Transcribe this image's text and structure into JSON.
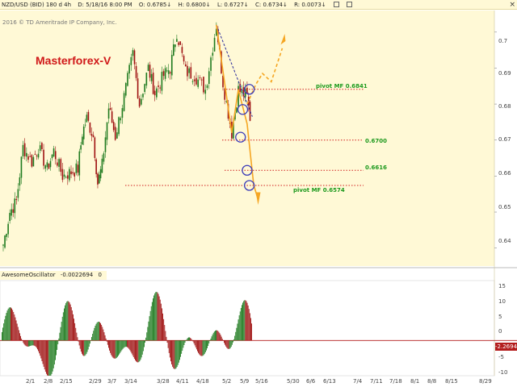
{
  "header": {
    "symbol": "NZD/USD (BID) 180 d 4h",
    "date": "D: 5/18/16 8:00 PM",
    "open": "O: 0.6785↓",
    "high": "H: 0.6800↓",
    "low": "L: 0.6727↓",
    "close": "C: 0.6734↓",
    "range": "R: 0.0073↓",
    "close_icon": "×"
  },
  "copyright": "2016 © TD Ameritrade IP Company, Inc.",
  "watermark": "Masterforex-V",
  "annotations": {
    "pivot_high": "pivot MF 0.6841",
    "level_mid": "0.6700",
    "level_low": "0.6616",
    "pivot_low": "pivot MF 0.6574"
  },
  "price_axis": [
    "0.7",
    "0.69",
    "0.68",
    "0.67",
    "0.66",
    "0.65",
    "0.64"
  ],
  "oscillator": {
    "name": "AwesomeOscillator",
    "value": "-0.0022694",
    "extra": "0",
    "axis": [
      "15",
      "10",
      "5",
      "0",
      "-5",
      "-10"
    ],
    "badge": "-2.2694"
  },
  "date_axis": [
    "2/1",
    "2/8",
    "2/15",
    "2/29",
    "3/7",
    "3/14",
    "3/28",
    "4/11",
    "4/18",
    "5/2",
    "5/9",
    "5/16",
    "5/30",
    "6/6",
    "6/13",
    "7/4",
    "7/11",
    "7/18",
    "8/1",
    "8/8",
    "8/15",
    "8/29"
  ],
  "colors": {
    "chart_bg": "#fff9d6",
    "bull": "#1e7a1e",
    "bear": "#9e1010",
    "forecast": "#f5a623",
    "level_line": "#d02020",
    "trend_line": "#2a2a9a",
    "circle": "#3a3ab8"
  },
  "chart_data": [
    {
      "type": "candlestick",
      "title": "NZD/USD (BID) 180 d 4h",
      "ylim": [
        0.635,
        0.706
      ],
      "x_tick_labels": [
        "2/1",
        "2/8",
        "2/15",
        "2/29",
        "3/7",
        "3/14",
        "3/28",
        "4/11",
        "4/18",
        "5/2",
        "5/9",
        "5/16"
      ],
      "close_path": [
        {
          "x": "1/26",
          "y": 0.641
        },
        {
          "x": "1/29",
          "y": 0.65
        },
        {
          "x": "2/1",
          "y": 0.653
        },
        {
          "x": "2/4",
          "y": 0.668
        },
        {
          "x": "2/8",
          "y": 0.664
        },
        {
          "x": "2/11",
          "y": 0.668
        },
        {
          "x": "2/15",
          "y": 0.662
        },
        {
          "x": "2/18",
          "y": 0.667
        },
        {
          "x": "2/22",
          "y": 0.66
        },
        {
          "x": "2/29",
          "y": 0.662
        },
        {
          "x": "3/2",
          "y": 0.672
        },
        {
          "x": "3/4",
          "y": 0.676
        },
        {
          "x": "3/7",
          "y": 0.671
        },
        {
          "x": "3/9",
          "y": 0.658
        },
        {
          "x": "3/11",
          "y": 0.663
        },
        {
          "x": "3/14",
          "y": 0.679
        },
        {
          "x": "3/17",
          "y": 0.671
        },
        {
          "x": "3/21",
          "y": 0.682
        },
        {
          "x": "3/25",
          "y": 0.694
        },
        {
          "x": "3/28",
          "y": 0.68
        },
        {
          "x": "4/1",
          "y": 0.69
        },
        {
          "x": "4/4",
          "y": 0.683
        },
        {
          "x": "4/8",
          "y": 0.688
        },
        {
          "x": "4/11",
          "y": 0.69
        },
        {
          "x": "4/14",
          "y": 0.7
        },
        {
          "x": "4/18",
          "y": 0.689
        },
        {
          "x": "4/22",
          "y": 0.688
        },
        {
          "x": "4/27",
          "y": 0.684
        },
        {
          "x": "5/2",
          "y": 0.702
        },
        {
          "x": "5/5",
          "y": 0.686
        },
        {
          "x": "5/9",
          "y": 0.672
        },
        {
          "x": "5/12",
          "y": 0.684
        },
        {
          "x": "5/16",
          "y": 0.682
        },
        {
          "x": "5/18",
          "y": 0.6734
        }
      ],
      "levels": [
        {
          "label": "pivot MF 0.6841",
          "y": 0.6841
        },
        {
          "label": "0.6700",
          "y": 0.67
        },
        {
          "label": "0.6616",
          "y": 0.6616
        },
        {
          "label": "pivot MF 0.6574",
          "y": 0.6574
        }
      ]
    },
    {
      "type": "bar",
      "title": "AwesomeOscillator",
      "ylim": [
        -10,
        17
      ],
      "current_value": -2.2694
    }
  ]
}
